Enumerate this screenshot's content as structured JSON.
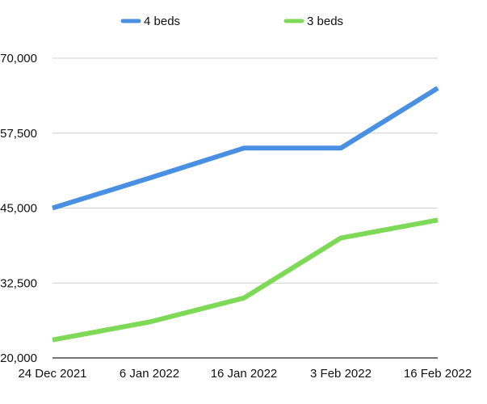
{
  "chart_data": {
    "type": "line",
    "x": [
      "24 Dec 2021",
      "6 Jan 2022",
      "16 Jan 2022",
      "3 Feb 2022",
      "16 Feb 2022"
    ],
    "series": [
      {
        "name": "4 beds",
        "color": "#4A90E2",
        "values": [
          45000,
          50000,
          55000,
          55000,
          65000
        ]
      },
      {
        "name": "3 beds",
        "color": "#7ED957",
        "values": [
          23000,
          26000,
          30000,
          40000,
          43000
        ]
      }
    ],
    "y_ticks": [
      "20,000",
      "32,500",
      "45,000",
      "57,500",
      "70,000"
    ],
    "ylim": [
      20000,
      70000
    ],
    "grid": true,
    "legend_position": "top-center"
  }
}
